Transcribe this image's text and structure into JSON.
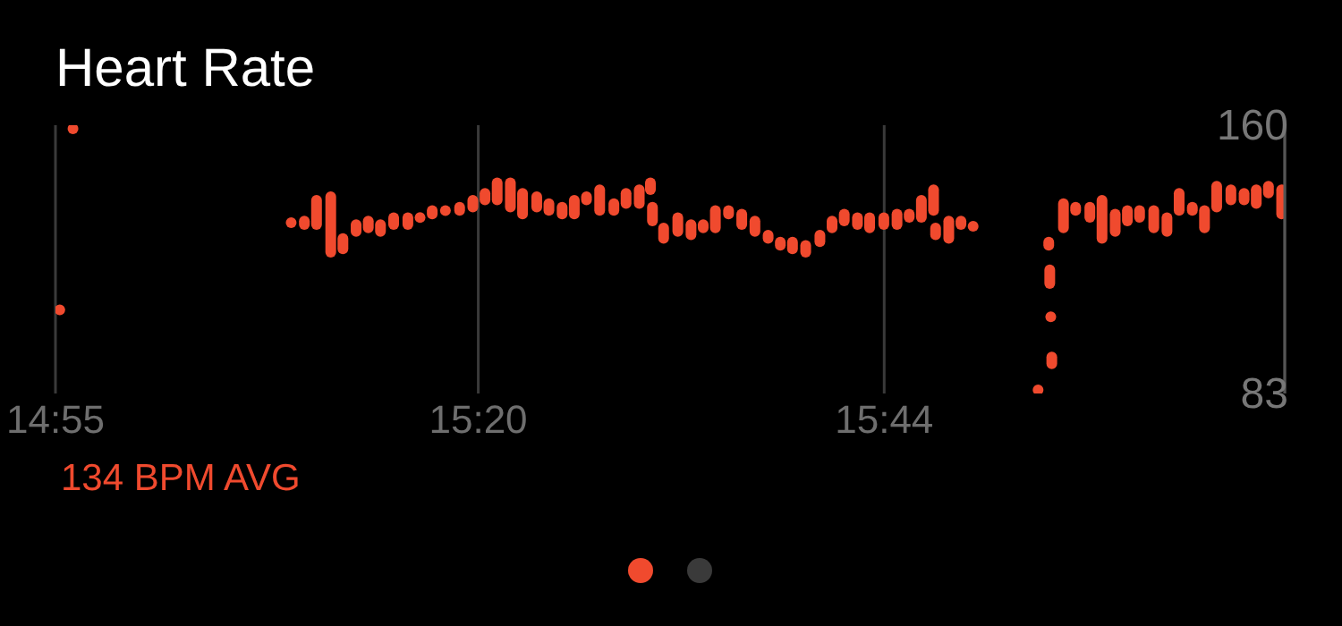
{
  "chart_data": {
    "type": "bar",
    "title": "Heart Rate",
    "annotations": [
      "134 BPM AVG"
    ],
    "x": [
      14.921,
      14.934,
      15.149,
      15.162,
      15.174,
      15.188,
      15.2,
      15.213,
      15.225,
      15.237,
      15.25,
      15.264,
      15.276,
      15.288,
      15.301,
      15.315,
      15.328,
      15.34,
      15.352,
      15.365,
      15.377,
      15.391,
      15.403,
      15.416,
      15.428,
      15.44,
      15.453,
      15.467,
      15.479,
      15.492,
      15.503,
      15.505,
      15.516,
      15.53,
      15.543,
      15.555,
      15.567,
      15.58,
      15.593,
      15.606,
      15.619,
      15.631,
      15.643,
      15.656,
      15.67,
      15.682,
      15.694,
      15.707,
      15.719,
      15.733,
      15.746,
      15.758,
      15.77,
      15.782,
      15.784,
      15.797,
      15.809,
      15.821,
      15.885,
      15.8955,
      15.8965,
      15.8975,
      15.8985,
      15.91,
      15.922,
      15.936,
      15.948,
      15.961,
      15.973,
      15.985,
      15.999,
      16.012,
      16.024,
      16.037,
      16.049,
      16.061,
      16.075,
      16.088,
      16.1,
      16.112,
      16.125
    ],
    "base": [
      106,
      158,
      131,
      130,
      130,
      122,
      123,
      128,
      129,
      128,
      130,
      130,
      132,
      133,
      134,
      134,
      135,
      137,
      137,
      135,
      133,
      135,
      134,
      133,
      133,
      137,
      134,
      134,
      136,
      136,
      140,
      131,
      126,
      128,
      127,
      129,
      129,
      133,
      130,
      128,
      126,
      124,
      123,
      122,
      125,
      129,
      131,
      130,
      129,
      130,
      130,
      132,
      132,
      134,
      127,
      126,
      130,
      130,
      83,
      124,
      113,
      104,
      90,
      129,
      134,
      132,
      126,
      128,
      131,
      132,
      129,
      128,
      134,
      134,
      129,
      135,
      137,
      137,
      136,
      139,
      133
    ],
    "values": [
      2,
      2,
      2,
      4,
      10,
      19,
      6,
      5,
      5,
      5,
      5,
      5,
      3,
      4,
      3,
      4,
      5,
      5,
      8,
      10,
      9,
      6,
      5,
      5,
      7,
      4,
      9,
      5,
      6,
      7,
      5,
      7,
      6,
      7,
      6,
      4,
      8,
      4,
      6,
      6,
      4,
      4,
      5,
      5,
      5,
      5,
      5,
      5,
      6,
      5,
      6,
      4,
      8,
      9,
      5,
      8,
      4,
      2,
      2,
      4,
      7,
      2,
      5,
      10,
      4,
      6,
      14,
      8,
      6,
      5,
      8,
      7,
      8,
      4,
      8,
      9,
      6,
      5,
      7,
      5,
      10
    ],
    "color": "#f04a2e",
    "xlim": [
      14.9167,
      16.128
    ],
    "xticks": [
      {
        "value": 14.9167,
        "label": "14:55"
      },
      {
        "value": 15.3333,
        "label": "15:20"
      },
      {
        "value": 15.7333,
        "label": "15:44"
      }
    ],
    "ylim": [
      83,
      160
    ],
    "yticks": [
      83,
      160
    ],
    "grid": "x"
  }
}
